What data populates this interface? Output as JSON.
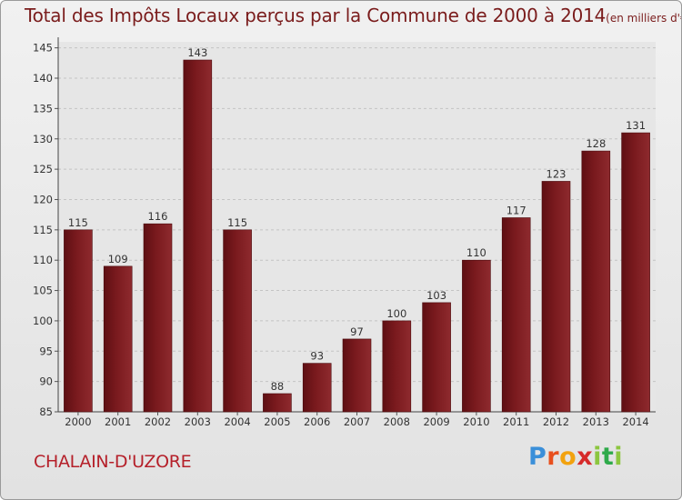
{
  "chart_data": {
    "type": "bar",
    "title": "Total des Impôts Locaux perçus par la Commune de 2000 à 2014",
    "subtitle": "(en milliers d'€)",
    "categories": [
      "2000",
      "2001",
      "2002",
      "2003",
      "2004",
      "2005",
      "2006",
      "2007",
      "2008",
      "2009",
      "2010",
      "2011",
      "2012",
      "2013",
      "2014"
    ],
    "values": [
      115,
      109,
      116,
      143,
      115,
      88,
      93,
      97,
      100,
      103,
      110,
      117,
      123,
      128,
      131
    ],
    "ylim": [
      85,
      146
    ],
    "yticks": [
      85,
      90,
      95,
      100,
      105,
      110,
      115,
      120,
      125,
      130,
      135,
      140,
      145
    ],
    "grid": true,
    "bar_color": "#7a1a1e"
  },
  "footer": {
    "commune": "CHALAIN-D'UZORE",
    "logo_letters": [
      {
        "ch": "P",
        "color": "#3a8fd9"
      },
      {
        "ch": "r",
        "color": "#e8501e"
      },
      {
        "ch": "o",
        "color": "#f2a20f"
      },
      {
        "ch": "x",
        "color": "#d62a2a"
      },
      {
        "ch": "i",
        "color": "#8cc63f"
      },
      {
        "ch": "t",
        "color": "#2eaa4a"
      },
      {
        "ch": "i",
        "color": "#8cc63f"
      }
    ]
  }
}
